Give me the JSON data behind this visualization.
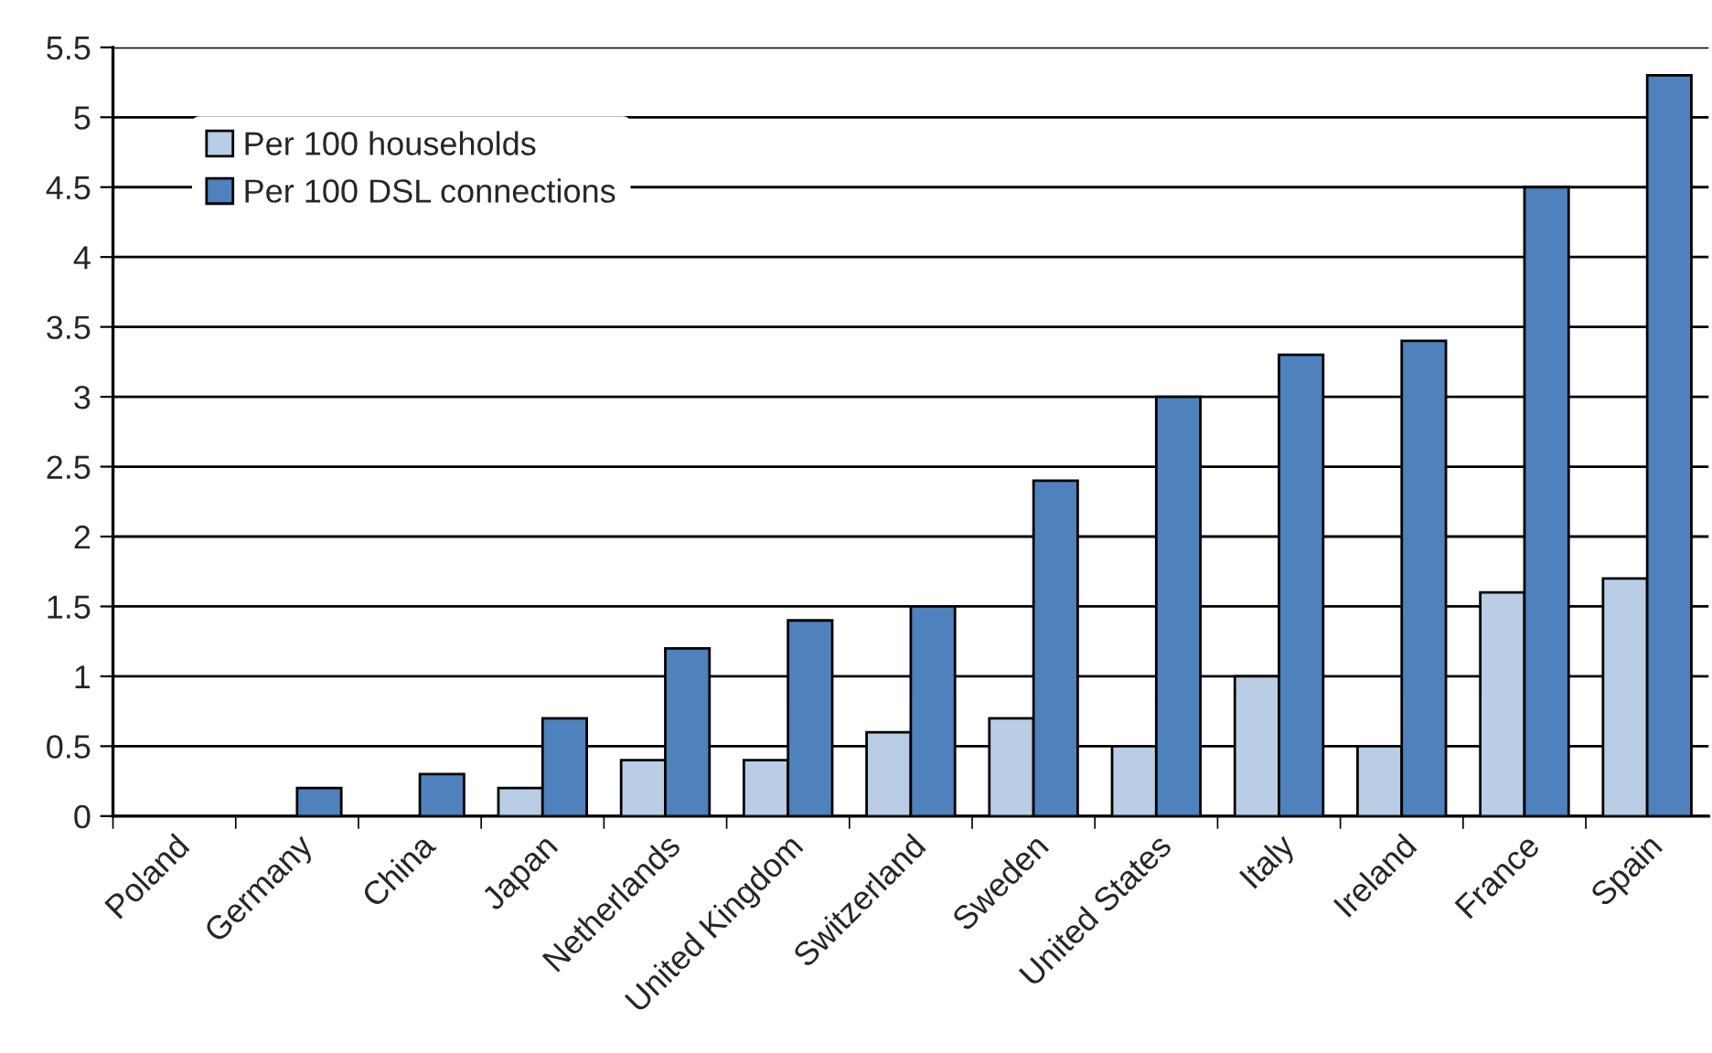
{
  "chart_data": {
    "type": "bar",
    "categories": [
      "Poland",
      "Germany",
      "China",
      "Japan",
      "Netherlands",
      "United Kingdom",
      "Switzerland",
      "Sweden",
      "United States",
      "Italy",
      "Ireland",
      "France",
      "Spain"
    ],
    "series": [
      {
        "name": "Per 100 households",
        "color": "#b9cde5",
        "values": [
          0,
          0,
          0,
          0.2,
          0.4,
          0.4,
          0.6,
          0.7,
          0.5,
          1.0,
          0.5,
          1.6,
          1.7
        ]
      },
      {
        "name": "Per 100 DSL connections",
        "color": "#4f81bd",
        "values": [
          0,
          0.2,
          0.3,
          0.7,
          1.2,
          1.4,
          1.5,
          2.4,
          3.0,
          3.3,
          3.4,
          4.5,
          5.3
        ]
      }
    ],
    "ylim": [
      0,
      5.5
    ],
    "yticks": [
      0,
      0.5,
      1,
      1.5,
      2,
      2.5,
      3,
      3.5,
      4,
      4.5,
      5,
      5.5
    ],
    "grid": "y",
    "legend": "top left"
  }
}
